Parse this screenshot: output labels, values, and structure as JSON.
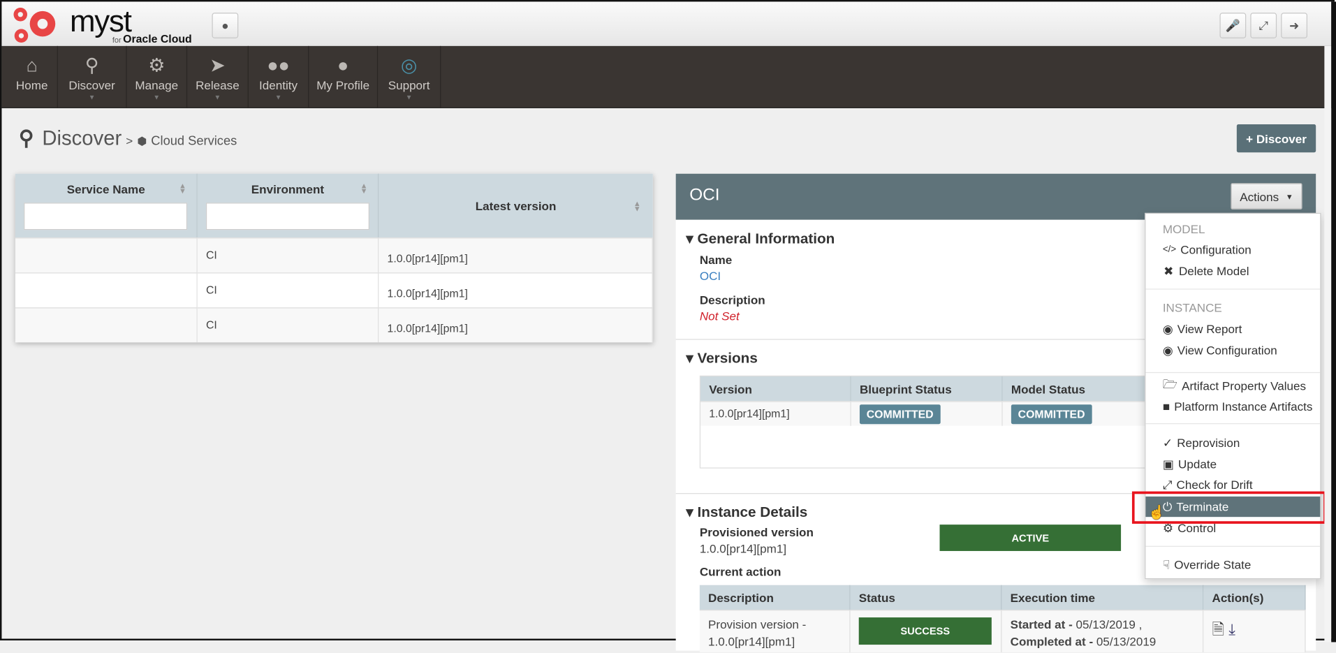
{
  "header": {
    "logo_text": "myst",
    "logo_for": "for",
    "logo_sub": "Oracle Cloud",
    "right_icons": [
      "microphone-icon",
      "fullscreen-icon",
      "logout-icon"
    ]
  },
  "nav": [
    {
      "label": "Home",
      "icon": "home-icon",
      "dropdown": false
    },
    {
      "label": "Discover",
      "icon": "search-icon",
      "dropdown": true
    },
    {
      "label": "Manage",
      "icon": "cogs-icon",
      "dropdown": true
    },
    {
      "label": "Release",
      "icon": "rocket-icon",
      "dropdown": true
    },
    {
      "label": "Identity",
      "icon": "users-icon",
      "dropdown": true
    },
    {
      "label": "My Profile",
      "icon": "user-icon",
      "dropdown": false
    },
    {
      "label": "Support",
      "icon": "lifebuoy-icon",
      "dropdown": true
    }
  ],
  "breadcrumb": {
    "title": "Discover",
    "sep": ">",
    "current": "Cloud Services"
  },
  "discover_button": "+ Discover",
  "services_table": {
    "columns": [
      "Service Name",
      "Environment",
      "Latest version"
    ],
    "rows": [
      {
        "name": "",
        "env": "CI",
        "version": "1.0.0[pr14][pm1]"
      },
      {
        "name": "",
        "env": "CI",
        "version": "1.0.0[pr14][pm1]"
      },
      {
        "name": "",
        "env": "CI",
        "version": "1.0.0[pr14][pm1]"
      }
    ]
  },
  "detail": {
    "title": "OCI",
    "actions_label": "Actions",
    "general": {
      "heading": "General Information",
      "name_label": "Name",
      "name": "OCI",
      "desc_label": "Description",
      "desc": "Not Set"
    },
    "versions": {
      "heading": "Versions",
      "columns": [
        "Version",
        "Blueprint Status",
        "Model Status"
      ],
      "row": {
        "version": "1.0.0[pr14][pm1]",
        "blueprint": "COMMITTED",
        "model": "COMMITTED"
      }
    },
    "instance": {
      "heading": "Instance Details",
      "prov_label": "Provisioned version",
      "prov": "1.0.0[pr14][pm1]",
      "state": "ACTIVE",
      "current_label": "Current action",
      "columns": [
        "Description",
        "Status",
        "Execution time",
        "Action(s)"
      ],
      "row": {
        "desc": "Provision version - 1.0.0[pr14][pm1]",
        "status": "SUCCESS",
        "started_label": "Started at -",
        "started": "05/13/2019 ,",
        "completed_label": "Completed at -",
        "completed": "05/13/2019"
      }
    }
  },
  "menu": {
    "model_header": "MODEL",
    "configuration": "Configuration",
    "delete_model": "Delete Model",
    "instance_header": "INSTANCE",
    "view_report": "View Report",
    "view_configuration": "View Configuration",
    "artifact_property_values": "Artifact Property Values",
    "platform_instance_artifacts": "Platform Instance Artifacts",
    "reprovision": "Reprovision",
    "update": "Update",
    "check_for_drift": "Check for Drift",
    "terminate": "Terminate",
    "control": "Control",
    "override_state": "Override State"
  },
  "colors": {
    "nav_bg": "#3a3532",
    "panel_header": "#5f737a",
    "active_green": "#356f35",
    "highlight_red": "#e8141e",
    "logo_red": "#e84545"
  }
}
